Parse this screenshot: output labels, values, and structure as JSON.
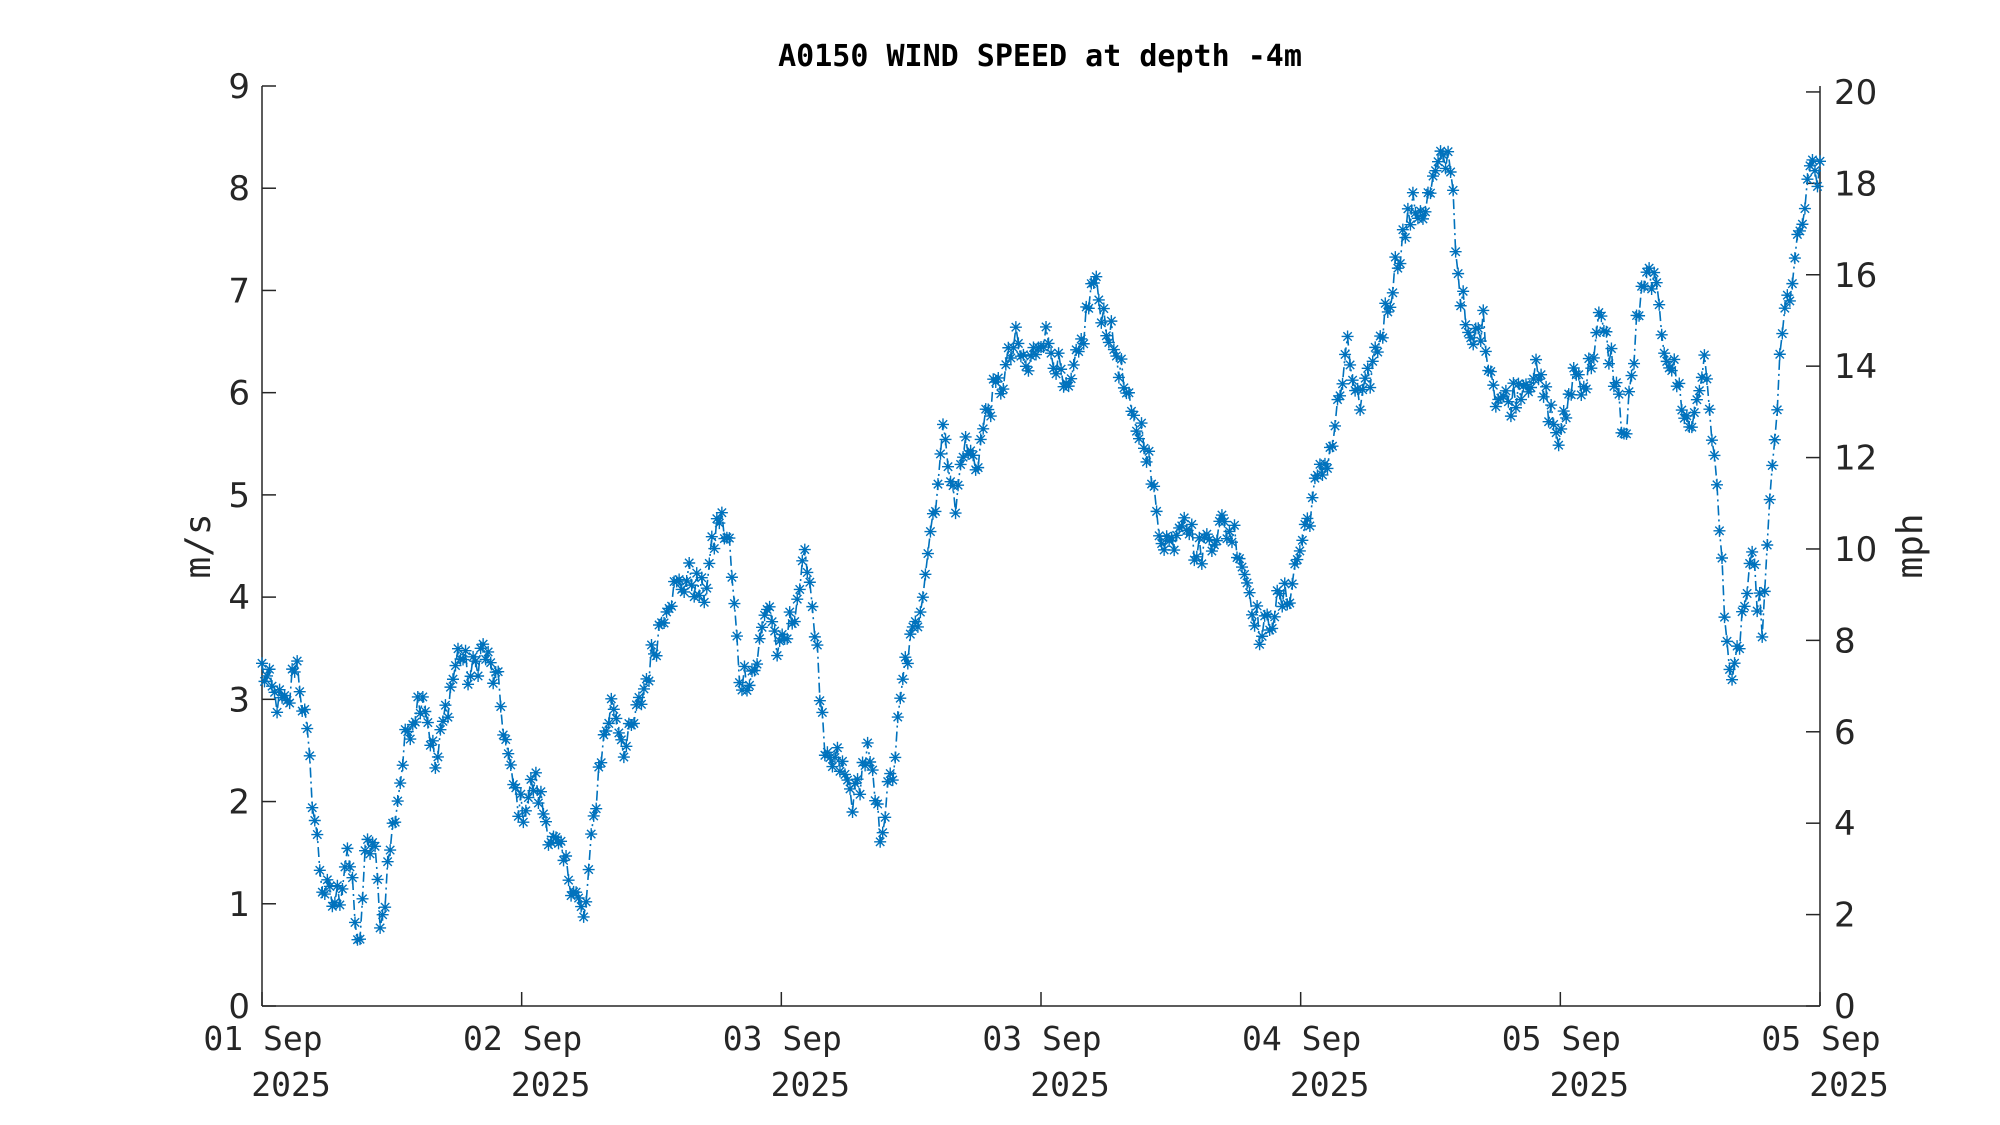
{
  "chart_data": {
    "type": "line",
    "title": "A0150 WIND SPEED at depth -4m",
    "ylabel": "m/s",
    "ylabel_right": "mph",
    "ylim": [
      0,
      9
    ],
    "ylim_right": [
      0,
      20.13
    ],
    "yticks": [
      "0",
      "1",
      "2",
      "3",
      "4",
      "5",
      "6",
      "7",
      "8",
      "9"
    ],
    "yticks_right": [
      "0",
      "2",
      "4",
      "6",
      "8",
      "10",
      "12",
      "14",
      "16",
      "18",
      "20"
    ],
    "xticks": [
      {
        "day": "01 Sep",
        "year": "2025"
      },
      {
        "day": "02 Sep",
        "year": "2025"
      },
      {
        "day": "03 Sep",
        "year": "2025"
      },
      {
        "day": "03 Sep",
        "year": "2025"
      },
      {
        "day": "04 Sep",
        "year": "2025"
      },
      {
        "day": "05 Sep",
        "year": "2025"
      },
      {
        "day": "05 Sep",
        "year": "2025"
      }
    ],
    "x_range": [
      0,
      6
    ],
    "grid": false,
    "series": [
      {
        "color": "#0072BD",
        "line_style": "dash-dot",
        "marker": "asterisk",
        "anchors": [
          [
            0.0,
            3.3
          ],
          [
            0.05,
            3.0
          ],
          [
            0.1,
            2.9
          ],
          [
            0.13,
            3.45
          ],
          [
            0.17,
            2.7
          ],
          [
            0.2,
            1.9
          ],
          [
            0.23,
            1.2
          ],
          [
            0.27,
            1.0
          ],
          [
            0.3,
            1.1
          ],
          [
            0.33,
            1.6
          ],
          [
            0.37,
            0.5
          ],
          [
            0.4,
            1.5
          ],
          [
            0.43,
            1.6
          ],
          [
            0.46,
            0.75
          ],
          [
            0.49,
            1.5
          ],
          [
            0.52,
            2.0
          ],
          [
            0.56,
            2.7
          ],
          [
            0.62,
            3.1
          ],
          [
            0.67,
            2.3
          ],
          [
            0.7,
            2.8
          ],
          [
            0.76,
            3.5
          ],
          [
            0.8,
            3.2
          ],
          [
            0.85,
            3.5
          ],
          [
            0.91,
            3.1
          ],
          [
            0.96,
            2.2
          ],
          [
            1.0,
            1.9
          ],
          [
            1.05,
            2.2
          ],
          [
            1.12,
            1.6
          ],
          [
            1.2,
            1.2
          ],
          [
            1.24,
            0.8
          ],
          [
            1.3,
            2.4
          ],
          [
            1.35,
            3.0
          ],
          [
            1.4,
            2.5
          ],
          [
            1.45,
            2.9
          ],
          [
            1.5,
            3.4
          ],
          [
            1.56,
            4.0
          ],
          [
            1.65,
            4.2
          ],
          [
            1.7,
            4.0
          ],
          [
            1.76,
            4.8
          ],
          [
            1.8,
            4.5
          ],
          [
            1.84,
            3.2
          ],
          [
            1.9,
            3.3
          ],
          [
            1.95,
            4.0
          ],
          [
            1.99,
            3.4
          ],
          [
            2.02,
            3.6
          ],
          [
            2.07,
            4.1
          ],
          [
            2.1,
            4.4
          ],
          [
            2.13,
            3.7
          ],
          [
            2.17,
            2.3
          ],
          [
            2.22,
            2.4
          ],
          [
            2.28,
            2.0
          ],
          [
            2.33,
            2.5
          ],
          [
            2.38,
            1.7
          ],
          [
            2.43,
            2.3
          ],
          [
            2.48,
            3.4
          ],
          [
            2.52,
            3.7
          ],
          [
            2.56,
            4.4
          ],
          [
            2.6,
            5.1
          ],
          [
            2.63,
            5.7
          ],
          [
            2.67,
            4.8
          ],
          [
            2.7,
            5.5
          ],
          [
            2.75,
            5.3
          ],
          [
            2.8,
            5.9
          ],
          [
            2.85,
            6.1
          ],
          [
            2.9,
            6.5
          ],
          [
            2.95,
            6.2
          ],
          [
            3.0,
            6.6
          ],
          [
            3.05,
            6.4
          ],
          [
            3.1,
            5.9
          ],
          [
            3.15,
            6.4
          ],
          [
            3.2,
            7.1
          ],
          [
            3.25,
            6.7
          ],
          [
            3.3,
            6.3
          ],
          [
            3.35,
            5.7
          ],
          [
            3.4,
            5.6
          ],
          [
            3.45,
            4.7
          ],
          [
            3.5,
            4.5
          ],
          [
            3.55,
            4.9
          ],
          [
            3.6,
            4.4
          ],
          [
            3.65,
            4.6
          ],
          [
            3.7,
            4.7
          ],
          [
            3.75,
            4.6
          ],
          [
            3.8,
            4.1
          ],
          [
            3.85,
            3.6
          ],
          [
            3.9,
            3.9
          ],
          [
            3.95,
            4.0
          ],
          [
            4.0,
            4.5
          ],
          [
            4.05,
            5.0
          ],
          [
            4.12,
            5.5
          ],
          [
            4.18,
            6.4
          ],
          [
            4.23,
            5.8
          ],
          [
            4.28,
            6.3
          ],
          [
            4.33,
            6.8
          ],
          [
            4.38,
            7.4
          ],
          [
            4.43,
            7.8
          ],
          [
            4.48,
            7.8
          ],
          [
            4.53,
            8.2
          ],
          [
            4.58,
            8.3
          ],
          [
            4.6,
            7.3
          ],
          [
            4.65,
            6.4
          ],
          [
            4.7,
            6.7
          ],
          [
            4.75,
            6.0
          ],
          [
            4.8,
            5.9
          ],
          [
            4.85,
            6.1
          ],
          [
            4.9,
            6.2
          ],
          [
            4.95,
            5.9
          ],
          [
            5.0,
            5.5
          ],
          [
            5.05,
            6.2
          ],
          [
            5.1,
            6.1
          ],
          [
            5.15,
            6.7
          ],
          [
            5.2,
            6.3
          ],
          [
            5.25,
            5.5
          ],
          [
            5.3,
            6.8
          ],
          [
            5.35,
            7.2
          ],
          [
            5.4,
            6.5
          ],
          [
            5.45,
            6.1
          ],
          [
            5.5,
            5.6
          ],
          [
            5.55,
            6.3
          ],
          [
            5.58,
            5.8
          ],
          [
            5.62,
            4.4
          ],
          [
            5.66,
            3.0
          ],
          [
            5.7,
            3.8
          ],
          [
            5.74,
            4.3
          ],
          [
            5.78,
            3.7
          ],
          [
            5.82,
            5.4
          ],
          [
            5.86,
            6.7
          ],
          [
            5.9,
            7.2
          ],
          [
            5.94,
            7.8
          ],
          [
            5.97,
            8.2
          ],
          [
            6.0,
            8.1
          ]
        ]
      }
    ]
  }
}
